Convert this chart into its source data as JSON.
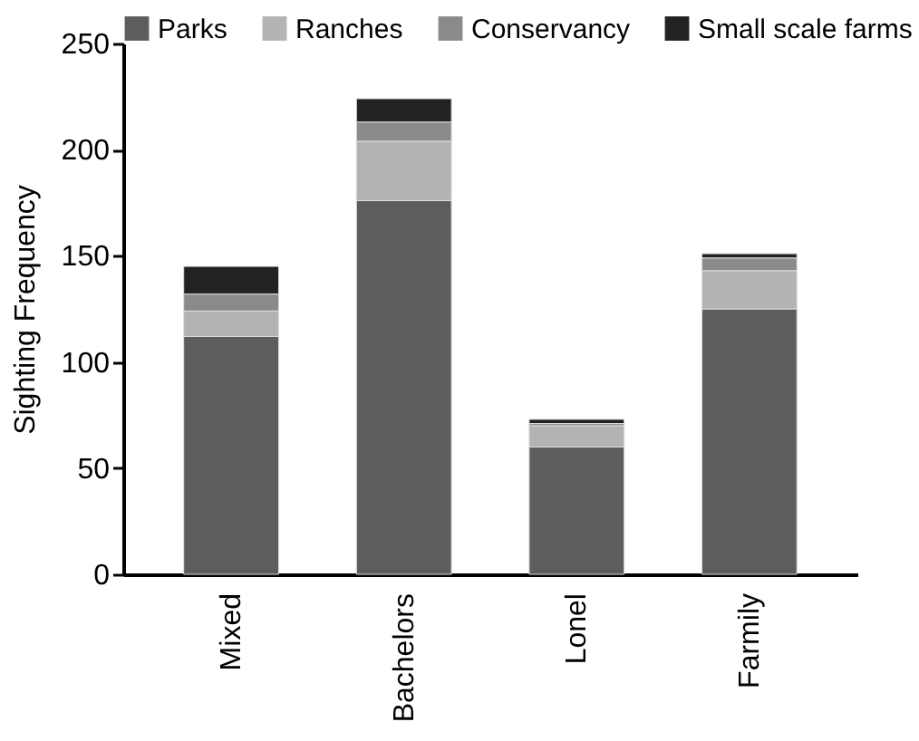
{
  "chart_data": {
    "type": "bar",
    "stacked": true,
    "ylabel": "Sighting Frequency",
    "categories": [
      "Mixed",
      "Bachelors",
      "Lonel",
      "Farmily"
    ],
    "series": [
      {
        "name": "Parks",
        "color": "#5d5d5d",
        "values": [
          112,
          176,
          60,
          125
        ]
      },
      {
        "name": "Ranches",
        "color": "#b3b3b3",
        "values": [
          12,
          28,
          10,
          18
        ]
      },
      {
        "name": "Conservancy",
        "color": "#8a8a8a",
        "values": [
          8,
          9,
          1,
          6
        ]
      },
      {
        "name": "Small scale farms",
        "color": "#222222",
        "values": [
          13,
          11,
          2,
          2
        ]
      }
    ],
    "ylim": [
      0,
      250
    ],
    "yticks": [
      0,
      50,
      100,
      150,
      200,
      250
    ],
    "grid": false,
    "legend": "top"
  }
}
